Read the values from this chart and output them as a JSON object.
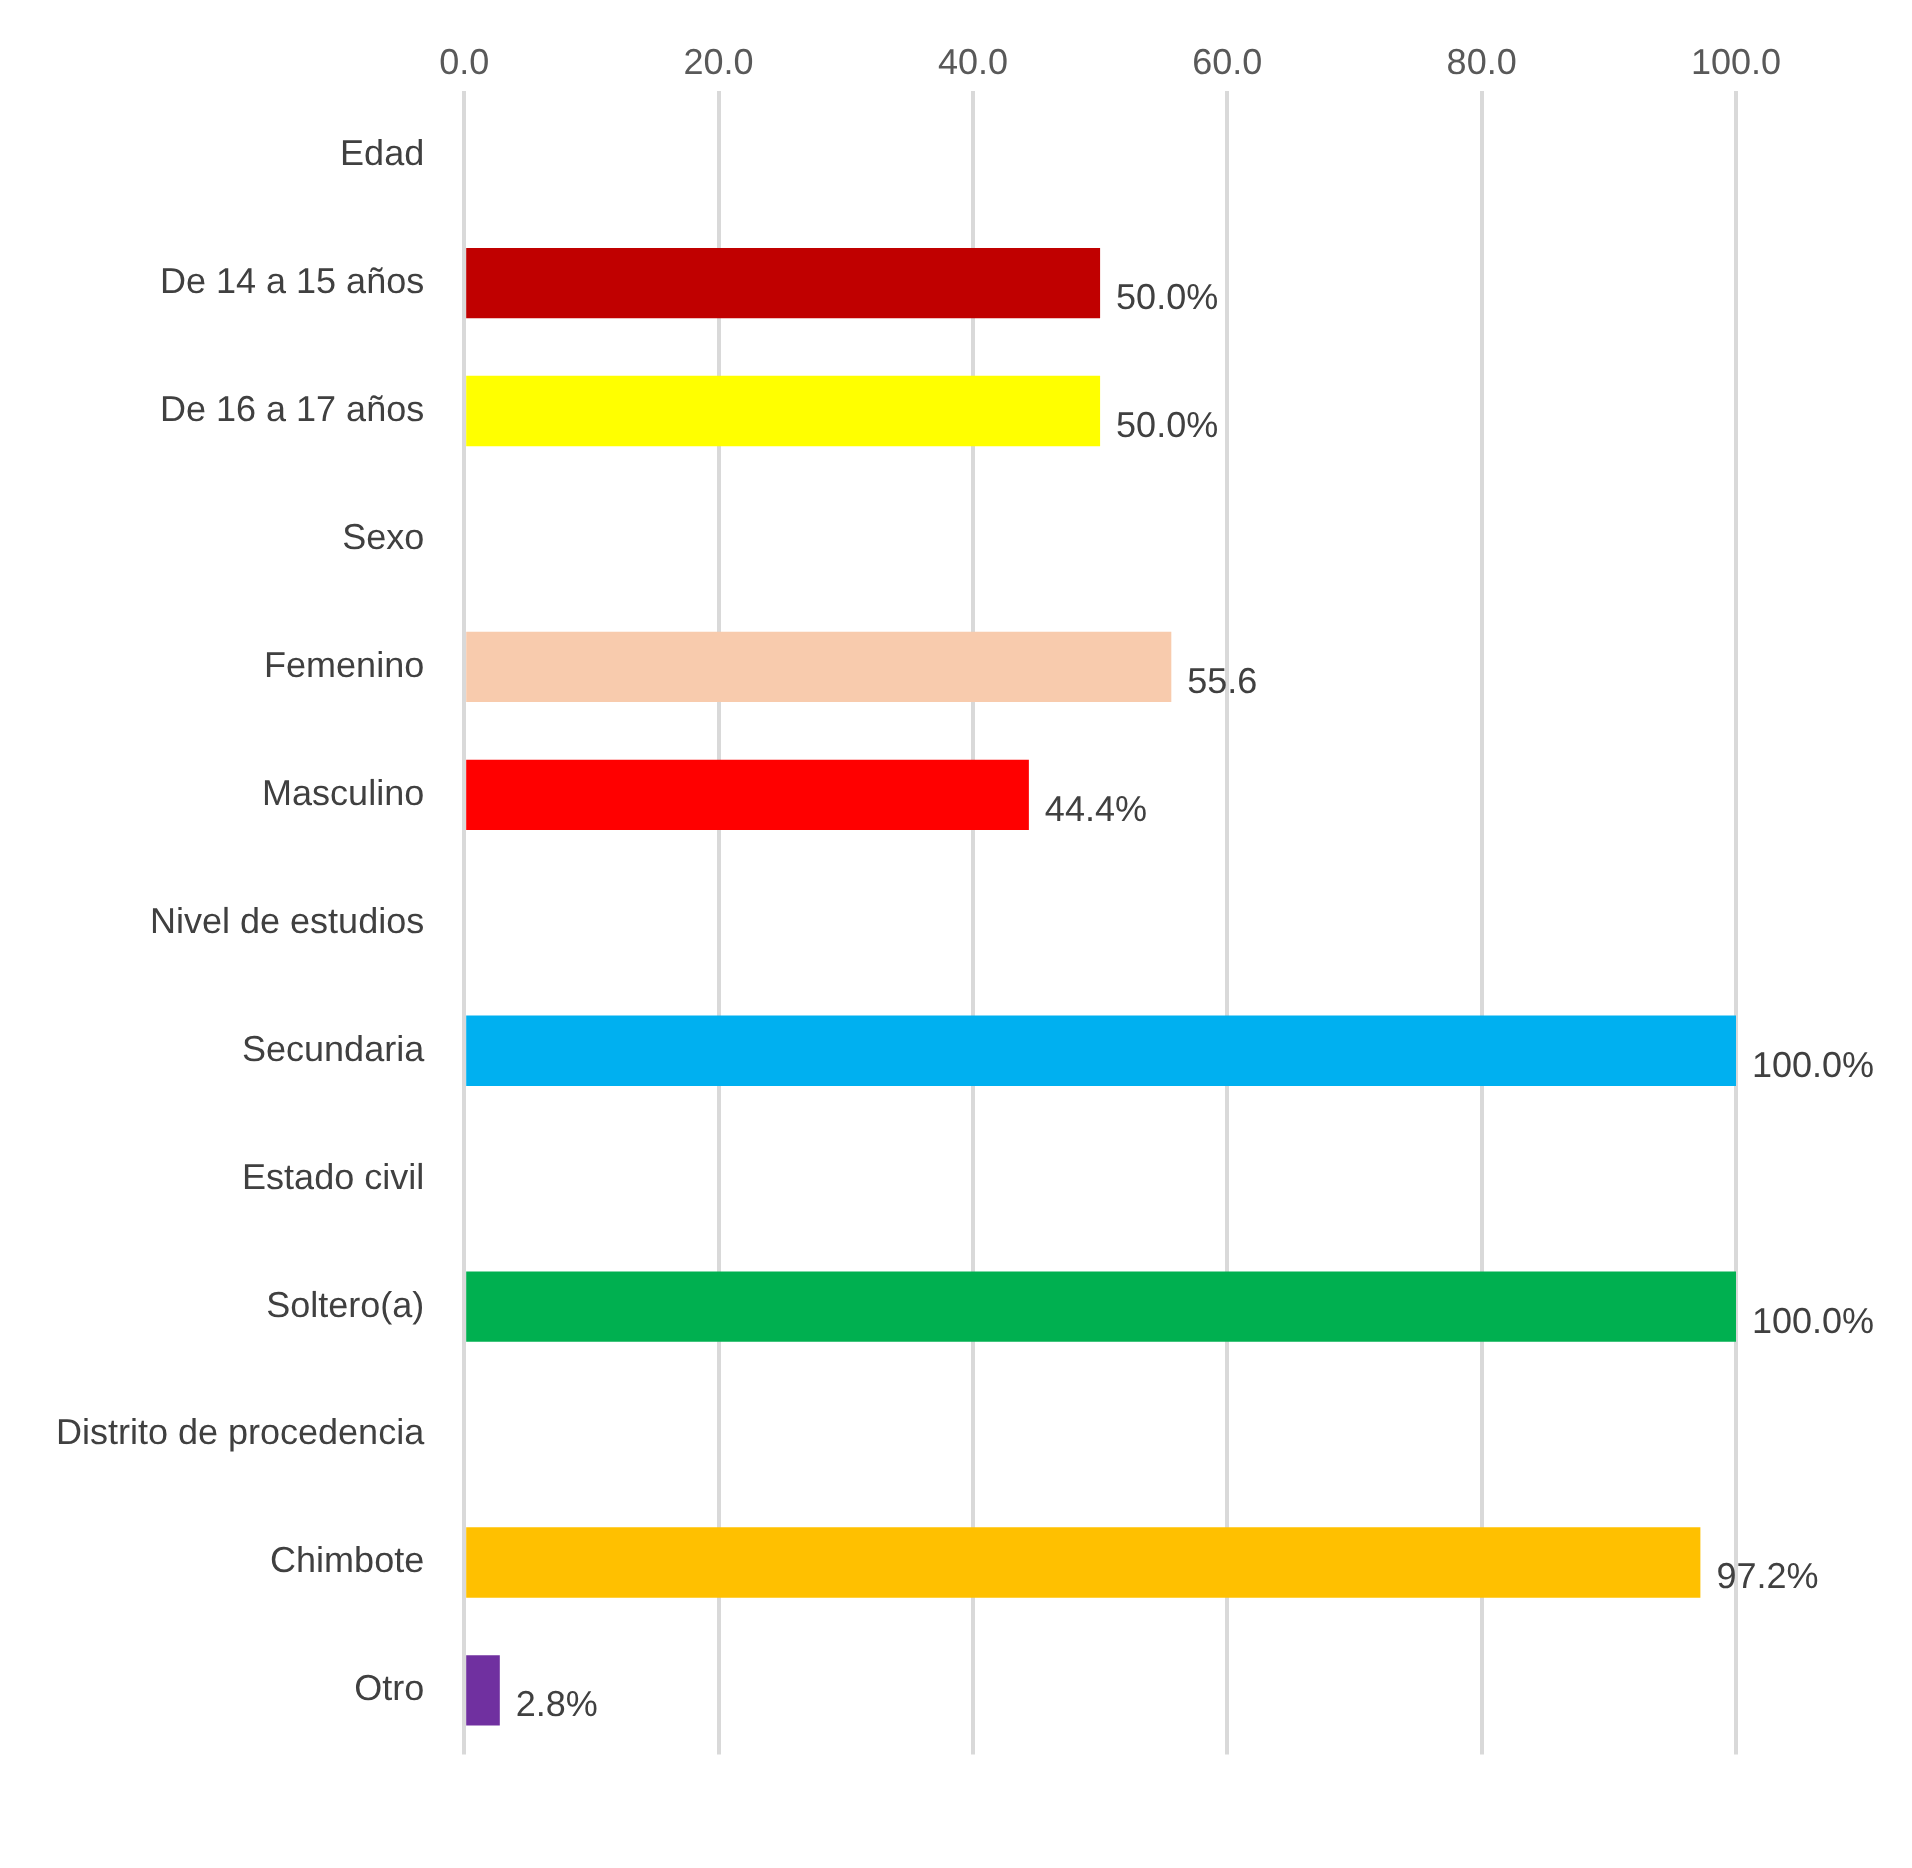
{
  "chart_data": {
    "type": "bar",
    "orientation": "horizontal",
    "categories": [
      "Edad",
      "De 14 a 15 años",
      "De 16 a 17 años",
      "Sexo",
      "Femenino",
      "Masculino",
      "Nivel de estudios",
      "Secundaria",
      "Estado civil",
      "Soltero(a)",
      "Distrito de procedencia",
      "Chimbote",
      "Otro"
    ],
    "values": [
      null,
      50.0,
      50.0,
      null,
      55.6,
      44.4,
      null,
      100.0,
      null,
      100.0,
      null,
      97.2,
      2.8
    ],
    "colors": [
      "#808080",
      "#c00000",
      "#ffff00",
      "#808080",
      "#f8cbad",
      "#ff0000",
      "#808080",
      "#00b0f0",
      "#808080",
      "#00b050",
      "#808080",
      "#ffc000",
      "#7030a0"
    ],
    "value_labels": [
      null,
      "50.0%",
      "50.0%",
      null,
      "55.6",
      "44.4%",
      null,
      "100.0%",
      null,
      "100.0%",
      null,
      "97.2%",
      "2.8%"
    ],
    "xlim": [
      0,
      100
    ],
    "xticks": [
      {
        "value": 0,
        "label": "0.0"
      },
      {
        "value": 20,
        "label": "20.0"
      },
      {
        "value": 40,
        "label": "40.0"
      },
      {
        "value": 60,
        "label": "60.0"
      },
      {
        "value": 80,
        "label": "80.0"
      },
      {
        "value": 100,
        "label": "100.0"
      }
    ],
    "grid": "x"
  }
}
